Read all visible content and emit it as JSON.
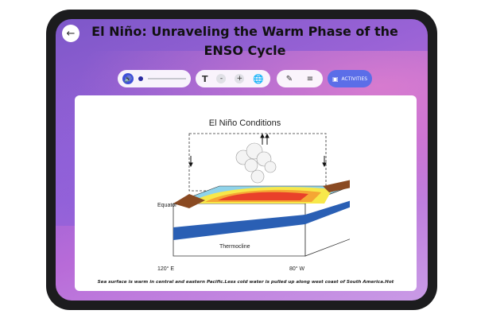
{
  "header": {
    "back_icon": "arrow-left-icon",
    "title": "El Niño: Unraveling the Warm Phase of the ENSO Cycle"
  },
  "toolbar": {
    "audio_icon": "speaker-icon",
    "minus_label": "-",
    "plus_label": "+",
    "text_icon": "text-size-icon",
    "globe_icon": "globe-icon",
    "highlight_icon": "highlighter-icon",
    "list_icon": "list-icon",
    "activities_label": "ACTIVITIES"
  },
  "diagram": {
    "title": "El Niño Conditions",
    "equator_label": "Equator",
    "thermocline_label": "Thermocline",
    "west_label": "120° E",
    "east_label": "80° W"
  },
  "caption": "Sea surface is warm in central and eastern Pacific.Less cold water is pulled up along west coast of South America.Hot"
}
